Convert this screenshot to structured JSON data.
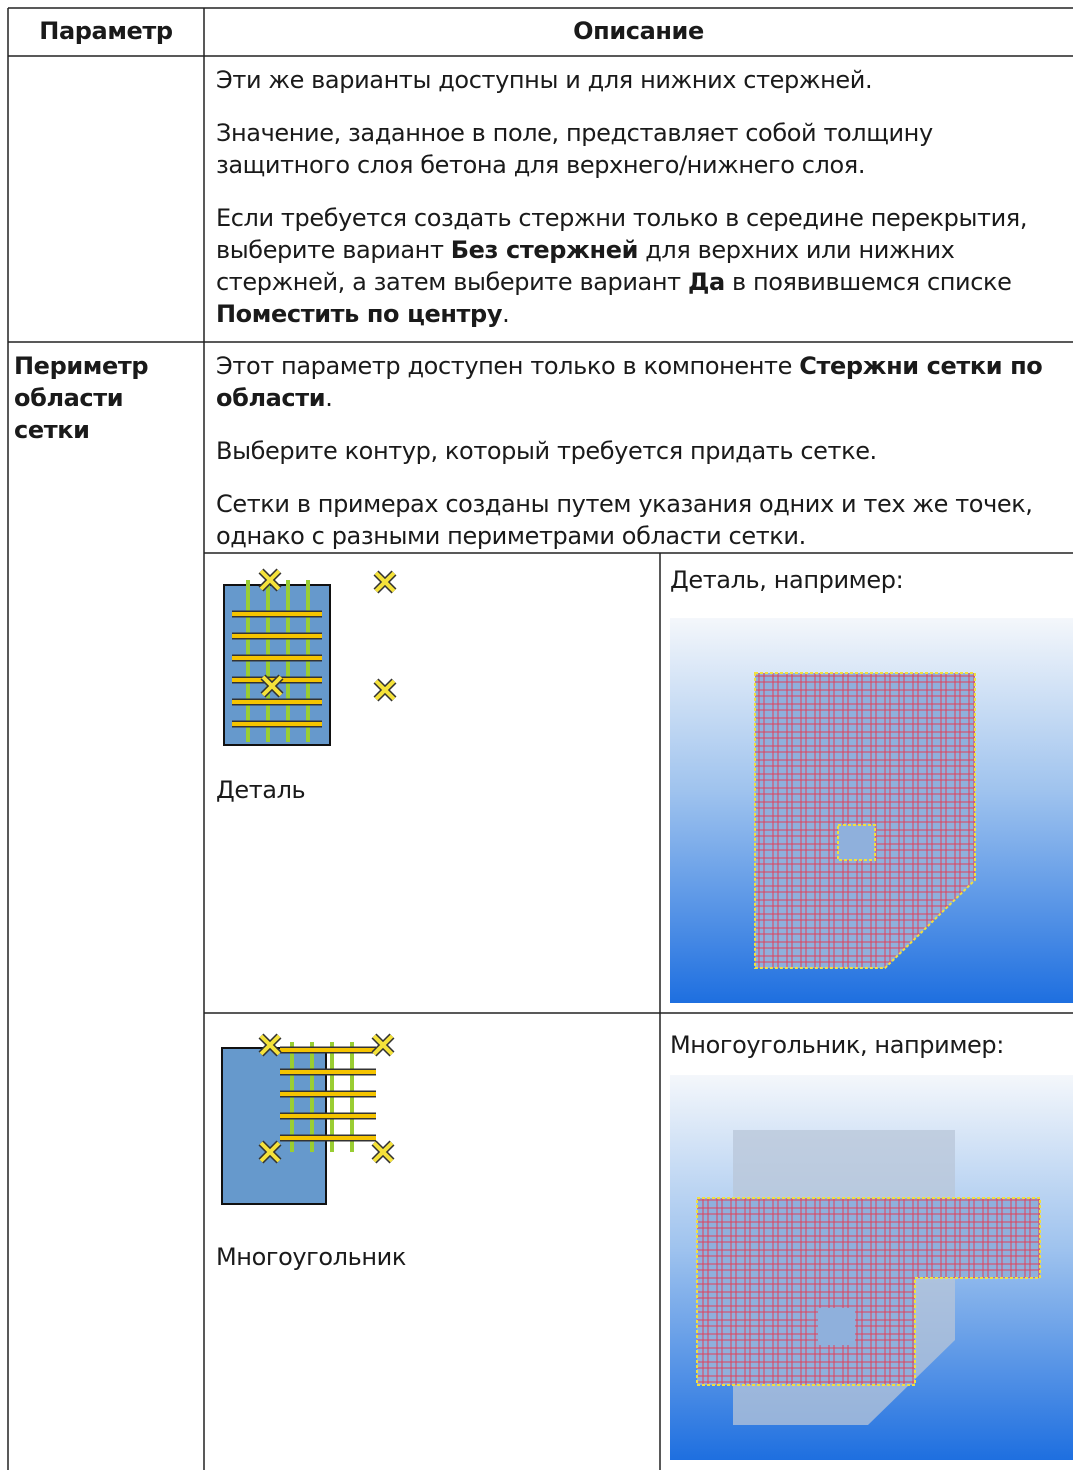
{
  "table": {
    "header": [
      "Параметр",
      "Описание"
    ],
    "rows": [
      {
        "parameter": "",
        "description": [
          [
            "Эти же варианты доступны и для нижних стержней."
          ],
          [
            "Значение, заданное в поле, представляет собой толщину защитного слоя бетона для верхнего/нижнего слоя."
          ],
          [
            "Если требуется создать стержни только в середине перекрытия, выберите вариант ",
            "Без стержней",
            " для верхних или нижних стержней, а затем выберите вариант ",
            "Да",
            " в появившемся списке ",
            "Поместить по центру",
            "."
          ]
        ]
      },
      {
        "parameter": "Периметр области сетки",
        "description": [
          [
            "Этот параметр доступен только в компоненте ",
            "Стержни сетки по области",
            "."
          ],
          [
            "Выберите контур, который требуется придать сетке."
          ],
          [
            "Сетки в примерах созданы путем указания одних и тех же точек, однако с разными периметрами области сетки."
          ]
        ],
        "examples": [
          {
            "label": "Деталь",
            "caption": "Деталь, например:"
          },
          {
            "label": "Многоугольник",
            "caption": "Многоугольник, например:"
          }
        ]
      }
    ]
  }
}
